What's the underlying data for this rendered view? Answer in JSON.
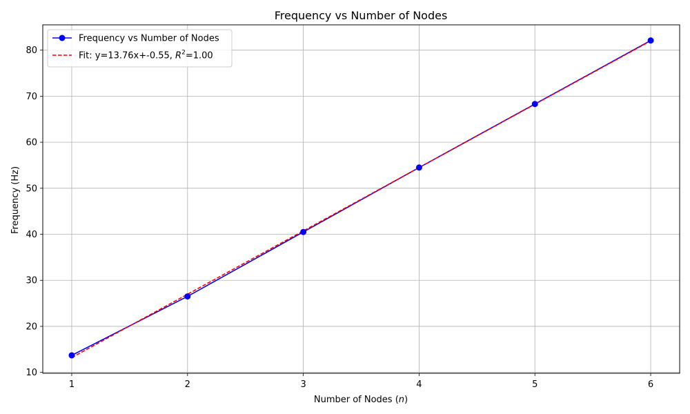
{
  "chart_data": {
    "type": "line",
    "title": "Frequency vs Number of Nodes",
    "xlabel": "Number of Nodes (",
    "xlabel_italic": "n",
    "xlabel_suffix": ")",
    "ylabel": "Frequency (Hz)",
    "xlim": [
      0.75,
      6.25
    ],
    "ylim": [
      9.8,
      85.5
    ],
    "xticks": [
      1,
      2,
      3,
      4,
      5,
      6
    ],
    "yticks": [
      10,
      20,
      30,
      40,
      50,
      60,
      70,
      80
    ],
    "grid": true,
    "legend_position": "top-left",
    "series": [
      {
        "name": "Frequency vs Number of Nodes",
        "x": [
          1,
          2,
          3,
          4,
          5,
          6
        ],
        "y": [
          13.7,
          26.5,
          40.5,
          54.5,
          68.3,
          82.1
        ],
        "color": "#0000ff",
        "style": "solid",
        "marker": "circle"
      },
      {
        "name_prefix": "Fit: y=13.76x+-0.55, ",
        "name_R": "R",
        "name_sup": "2",
        "name_suffix": "=1.00",
        "slope": 13.76,
        "intercept": -0.55,
        "x_range": [
          1,
          6
        ],
        "color": "#ff0000",
        "style": "dashed"
      }
    ]
  }
}
